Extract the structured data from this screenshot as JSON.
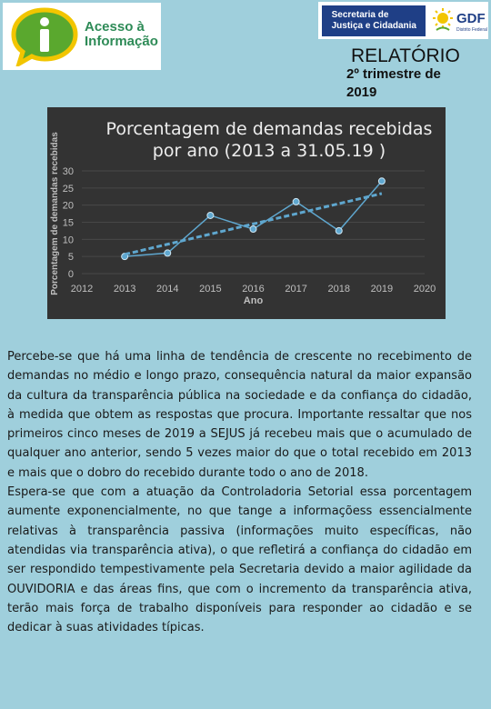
{
  "header": {
    "logo_line1": "Acesso à",
    "logo_line2": "Informação",
    "gov_line1": "Secretaria de",
    "gov_line2": "Justiça e Cidadania",
    "gdf": "GDF",
    "gdf_sub": "Distrito Federal",
    "report_title": "RELATÓRIO",
    "report_subtitle": "2º trimestre de 2019",
    "logo_color": "#2e8b57",
    "gov_color": "#1f3f86"
  },
  "chart_data": {
    "type": "line",
    "title": "Porcentagem de demandas recebidas por ano (2013 a 31.05.19 )",
    "title_lines": [
      "Porcentagem de demandas recebidas",
      "por ano (2013 a 31.05.19 )"
    ],
    "xlabel": "Ano",
    "ylabel": "Porcentagem de demandas recebidas",
    "x_ticks": [
      "2012",
      "2013",
      "2014",
      "2015",
      "2016",
      "2017",
      "2018",
      "2019",
      "2020"
    ],
    "y_ticks": [
      "0",
      "5",
      "10",
      "15",
      "20",
      "25",
      "30"
    ],
    "xlim": [
      2012,
      2020
    ],
    "ylim": [
      0,
      30
    ],
    "grid": true,
    "series": [
      {
        "x": [
          2013,
          2014,
          2015,
          2016,
          2017,
          2018,
          2019
        ],
        "values": [
          5,
          6,
          17,
          13,
          21,
          12.5,
          27
        ],
        "color": "#5fa7cf"
      }
    ],
    "trendline": {
      "type": "linear",
      "style": "dashed",
      "color": "#5fa7cf"
    },
    "background": "#333333"
  },
  "body": {
    "paragraph1": "Percebe-se que há uma linha de tendência de crescente no recebimento de demandas no médio e longo prazo, consequência natural da maior expansão da cultura da transparência pública na sociedade e da confiança do cidadão, à medida que obtem as respostas que procura. Importante ressaltar que nos primeiros cinco meses de 2019 a SEJUS já recebeu mais que o acumulado de qualquer ano anterior, sendo 5 vezes maior do que o total recebido em 2013 e mais que o dobro do recebido durante todo o ano de 2018.",
    "paragraph2": "Espera-se que com a atuação da Controladoria Setorial essa porcentagem aumente exponencialmente, no que tange a informaçõess essencialmente relativas à transparência passiva (informações muito específicas, não atendidas via transparência ativa), o que refletirá a confiança do cidadão em ser respondido tempestivamente pela Secretaria devido a maior agilidade da OUVIDORIA e das áreas fins, que com o incremento da transparência ativa, terão mais força de trabalho disponíveis para responder ao cidadão e se dedicar à suas atividades típicas."
  }
}
